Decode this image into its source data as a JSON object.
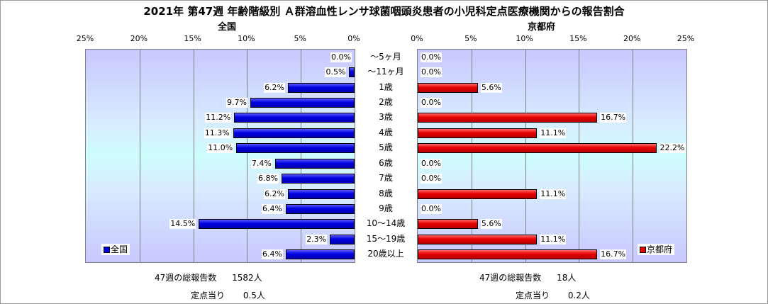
{
  "title": "2021年 第47週 年齢階級別 Ａ群溶血性レンサ球菌咽頭炎患者の小児科定点医療機関からの報告割合",
  "chart_data": {
    "type": "bar",
    "orientation": "horizontal",
    "categories": [
      "～5ヶ月",
      "～11ヶ月",
      "1歳",
      "2歳",
      "3歳",
      "4歳",
      "5歳",
      "6歳",
      "7歳",
      "8歳",
      "9歳",
      "10～14歳",
      "15～19歳",
      "20歳以上"
    ],
    "panels": [
      {
        "title": "全国",
        "direction": "reversed",
        "xlim": [
          0,
          25
        ],
        "ticks": [
          "25%",
          "20%",
          "15%",
          "10%",
          "5%",
          "0%"
        ],
        "series": [
          {
            "name": "全国",
            "color": "#0000e0",
            "values": [
              0.0,
              0.5,
              6.2,
              9.7,
              11.2,
              11.3,
              11.0,
              7.4,
              6.8,
              6.2,
              6.4,
              14.5,
              2.3,
              6.4
            ],
            "labels": [
              "0.0%",
              "0.5%",
              "6.2%",
              "9.7%",
              "11.2%",
              "11.3%",
              "11.0%",
              "7.4%",
              "6.8%",
              "6.2%",
              "6.4%",
              "14.5%",
              "2.3%",
              "6.4%"
            ]
          }
        ],
        "legend": "bottom-left"
      },
      {
        "title": "京都府",
        "direction": "normal",
        "xlim": [
          0,
          25
        ],
        "ticks": [
          "0%",
          "5%",
          "10%",
          "15%",
          "20%",
          "25%"
        ],
        "series": [
          {
            "name": "京都府",
            "color": "#e60000",
            "values": [
              0.0,
              0.0,
              5.6,
              0.0,
              16.7,
              11.1,
              22.2,
              0.0,
              0.0,
              11.1,
              0.0,
              5.6,
              11.1,
              16.7
            ],
            "labels": [
              "0.0%",
              "0.0%",
              "5.6%",
              "0.0%",
              "16.7%",
              "11.1%",
              "22.2%",
              "0.0%",
              "0.0%",
              "11.1%",
              "0.0%",
              "5.6%",
              "11.1%",
              "16.7%"
            ]
          }
        ],
        "legend": "bottom-right"
      }
    ],
    "grid": true
  },
  "footer": {
    "left": {
      "total_label": "47週の総報告数",
      "total_value": "1582人",
      "per_label": "定点当り",
      "per_value": "0.5人"
    },
    "right": {
      "total_label": "47週の総報告数",
      "total_value": "18人",
      "per_label": "定点当り",
      "per_value": "0.2人"
    }
  }
}
